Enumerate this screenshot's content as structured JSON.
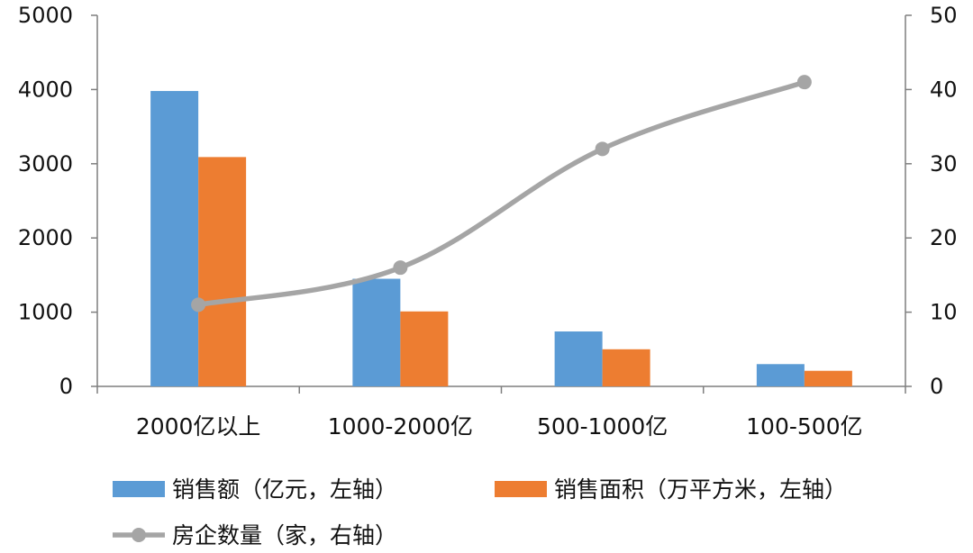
{
  "chart_data": {
    "type": "bar",
    "categories": [
      "2000亿以上",
      "1000-2000亿",
      "500-1000亿",
      "100-500亿"
    ],
    "series": [
      {
        "name": "销售额（亿元，左轴）",
        "kind": "bar",
        "axis": "left",
        "color": "#5B9BD5",
        "values": [
          3980,
          1450,
          740,
          300
        ]
      },
      {
        "name": "销售面积（万平方米，左轴）",
        "kind": "bar",
        "axis": "left",
        "color": "#ED7D31",
        "values": [
          3090,
          1010,
          500,
          210
        ]
      },
      {
        "name": "房企数量（家，右轴）",
        "kind": "line",
        "axis": "right",
        "color": "#A5A5A5",
        "values": [
          11,
          16,
          32,
          41
        ]
      }
    ],
    "y_left": {
      "min": 0,
      "max": 5000,
      "ticks": [
        0,
        1000,
        2000,
        3000,
        4000,
        5000
      ]
    },
    "y_right": {
      "min": 0,
      "max": 50,
      "ticks": [
        0,
        10,
        20,
        30,
        40,
        50
      ]
    },
    "grid": false,
    "legend_position": "bottom"
  }
}
